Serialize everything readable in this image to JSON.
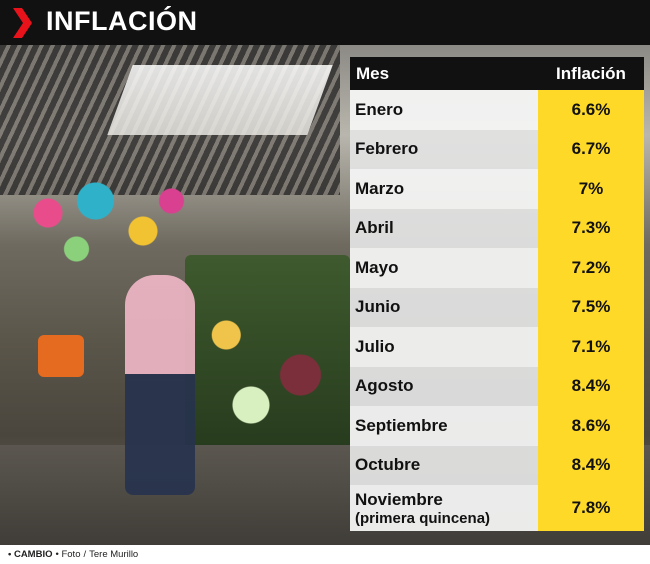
{
  "header": {
    "title": "INFLACIÓN",
    "accent_color": "#e8121b"
  },
  "table": {
    "col_month": "Mes",
    "col_value": "Inflación",
    "rows": [
      {
        "month": "Enero",
        "value": "6.6%"
      },
      {
        "month": "Febrero",
        "value": "6.7%"
      },
      {
        "month": "Marzo",
        "value": "7%"
      },
      {
        "month": "Abril",
        "value": "7.3%"
      },
      {
        "month": "Mayo",
        "value": "7.2%"
      },
      {
        "month": "Junio",
        "value": "7.5%"
      },
      {
        "month": "Julio",
        "value": "7.1%"
      },
      {
        "month": "Agosto",
        "value": "8.4%"
      },
      {
        "month": "Septiembre",
        "value": "8.6%"
      },
      {
        "month": "Octubre",
        "value": "8.4%"
      }
    ],
    "last_row": {
      "month": "Noviembre",
      "note": "(primera quincena)",
      "value": "7.8%"
    },
    "highlight_color": "#ffd928"
  },
  "credit": {
    "brand": "• CAMBIO",
    "photo_label": "• Foto",
    "separator": "/",
    "photographer": "Tere Murillo"
  }
}
